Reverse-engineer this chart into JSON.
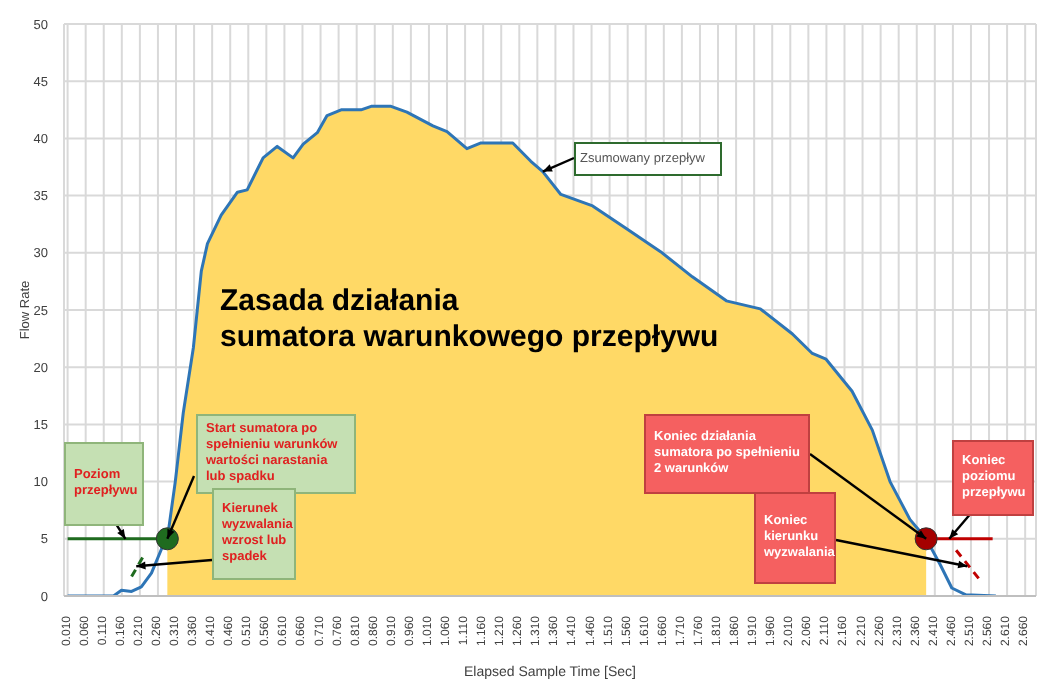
{
  "chart_data": {
    "type": "line",
    "title": "Zasada działania\nsumatora warunkowego przepływu",
    "xlabel": "Elapsed Sample Time [Sec]",
    "ylabel": "Flow Rate",
    "xlim": [
      0,
      2.69
    ],
    "ylim": [
      0,
      50
    ],
    "yticks": [
      0,
      5,
      10,
      15,
      20,
      25,
      30,
      35,
      40,
      45,
      50
    ],
    "xticks": [
      {
        "value": 0.01,
        "label": "0.010"
      },
      {
        "value": 0.06,
        "label": "0.060"
      },
      {
        "value": 0.11,
        "label": "0.110"
      },
      {
        "value": 0.16,
        "label": "0.160"
      },
      {
        "value": 0.21,
        "label": "0.210"
      },
      {
        "value": 0.26,
        "label": "0.260"
      },
      {
        "value": 0.31,
        "label": "0.310"
      },
      {
        "value": 0.36,
        "label": "0.360"
      },
      {
        "value": 0.41,
        "label": "0.410"
      },
      {
        "value": 0.46,
        "label": "0.460"
      },
      {
        "value": 0.51,
        "label": "0.510"
      },
      {
        "value": 0.56,
        "label": "0.560"
      },
      {
        "value": 0.61,
        "label": "0.610"
      },
      {
        "value": 0.66,
        "label": "0.660"
      },
      {
        "value": 0.71,
        "label": "0.710"
      },
      {
        "value": 0.76,
        "label": "0.760"
      },
      {
        "value": 0.81,
        "label": "0.810"
      },
      {
        "value": 0.86,
        "label": "0.860"
      },
      {
        "value": 0.91,
        "label": "0.910"
      },
      {
        "value": 0.96,
        "label": "0.960"
      },
      {
        "value": 1.01,
        "label": "1.010"
      },
      {
        "value": 1.06,
        "label": "1.060"
      },
      {
        "value": 1.11,
        "label": "1.110"
      },
      {
        "value": 1.16,
        "label": "1.160"
      },
      {
        "value": 1.21,
        "label": "1.210"
      },
      {
        "value": 1.26,
        "label": "1.260"
      },
      {
        "value": 1.31,
        "label": "1.310"
      },
      {
        "value": 1.36,
        "label": "1.360"
      },
      {
        "value": 1.41,
        "label": "1.410"
      },
      {
        "value": 1.46,
        "label": "1.460"
      },
      {
        "value": 1.51,
        "label": "1.510"
      },
      {
        "value": 1.56,
        "label": "1.560"
      },
      {
        "value": 1.61,
        "label": "1.610"
      },
      {
        "value": 1.66,
        "label": "1.660"
      },
      {
        "value": 1.71,
        "label": "1.710"
      },
      {
        "value": 1.76,
        "label": "1.760"
      },
      {
        "value": 1.81,
        "label": "1.810"
      },
      {
        "value": 1.86,
        "label": "1.860"
      },
      {
        "value": 1.91,
        "label": "1.910"
      },
      {
        "value": 1.96,
        "label": "1.960"
      },
      {
        "value": 2.01,
        "label": "2.010"
      },
      {
        "value": 2.06,
        "label": "2.060"
      },
      {
        "value": 2.11,
        "label": "2.110"
      },
      {
        "value": 2.16,
        "label": "2.160"
      },
      {
        "value": 2.21,
        "label": "2.210"
      },
      {
        "value": 2.26,
        "label": "2.260"
      },
      {
        "value": 2.31,
        "label": "2.310"
      },
      {
        "value": 2.36,
        "label": "2.360"
      },
      {
        "value": 2.41,
        "label": "2.410"
      },
      {
        "value": 2.46,
        "label": "2.460"
      },
      {
        "value": 2.51,
        "label": "2.510"
      },
      {
        "value": 2.56,
        "label": "2.560"
      },
      {
        "value": 2.61,
        "label": "2.610"
      },
      {
        "value": 2.66,
        "label": "2.660"
      }
    ],
    "grid": true,
    "marker": "none",
    "series": [
      {
        "type": "area",
        "color": "#ffd966",
        "x": [
          0.286,
          0.308,
          0.33,
          0.358,
          0.38,
          0.397,
          0.435,
          0.48,
          0.507,
          0.551,
          0.59,
          0.634,
          0.662,
          0.701,
          0.728,
          0.767,
          0.822,
          0.85,
          0.905,
          0.949,
          1.021,
          1.06,
          1.115,
          1.154,
          1.242,
          1.292,
          1.325,
          1.375,
          1.463,
          1.557,
          1.651,
          1.739,
          1.833,
          1.927,
          2.016,
          2.071,
          2.109,
          2.181,
          2.237,
          2.286,
          2.341,
          2.386
        ],
        "values": [
          5,
          10,
          16,
          21.7,
          28.4,
          30.8,
          33.3,
          35.3,
          35.5,
          38.3,
          39.3,
          38.3,
          39.5,
          40.5,
          42,
          42.5,
          42.5,
          42.8,
          42.8,
          42.3,
          41.1,
          40.6,
          39.1,
          39.6,
          39.6,
          38,
          37.1,
          35.1,
          34.1,
          32.1,
          30.1,
          27.9,
          25.8,
          25.1,
          22.9,
          21.2,
          20.7,
          17.9,
          14.5,
          10,
          6.7,
          5
        ]
      },
      {
        "color": "#2e75b6",
        "x": [
          0.01,
          0.137,
          0.159,
          0.187,
          0.214,
          0.242,
          0.275,
          0.286,
          0.308,
          0.33,
          0.358,
          0.38,
          0.397,
          0.435,
          0.48,
          0.507,
          0.551,
          0.59,
          0.634,
          0.662,
          0.701,
          0.728,
          0.767,
          0.822,
          0.85,
          0.905,
          0.949,
          1.021,
          1.06,
          1.115,
          1.154,
          1.242,
          1.292,
          1.325,
          1.375,
          1.463,
          1.557,
          1.651,
          1.739,
          1.833,
          1.927,
          2.016,
          2.071,
          2.109,
          2.181,
          2.237,
          2.286,
          2.341,
          2.386,
          2.424,
          2.457,
          2.496,
          2.579
        ],
        "values": [
          0,
          0,
          0.5,
          0.4,
          0.8,
          2,
          4.5,
          5,
          10,
          16,
          21.7,
          28.4,
          30.8,
          33.3,
          35.3,
          35.5,
          38.3,
          39.3,
          38.3,
          39.5,
          40.5,
          42,
          42.5,
          42.5,
          42.8,
          42.8,
          42.3,
          41.1,
          40.6,
          39.1,
          39.6,
          39.6,
          38,
          37.1,
          35.1,
          34.1,
          32.1,
          30.1,
          27.9,
          25.8,
          25.1,
          22.9,
          21.2,
          20.7,
          17.9,
          14.5,
          10,
          6.7,
          5,
          2.8,
          0.7,
          0.1,
          0
        ]
      },
      {
        "type": "line",
        "color": "#1f6b1f",
        "x": [
          0.01,
          0.286
        ],
        "values": [
          5,
          5
        ]
      },
      {
        "type": "line",
        "color": "#1f6b1f",
        "line_style": "dashed",
        "x": [
          0.187,
          0.22
        ],
        "values": [
          1.7,
          3.5
        ]
      },
      {
        "type": "scatter",
        "color": "#1f6b1f",
        "marker": "circle",
        "x": [
          0.286
        ],
        "values": [
          5
        ]
      },
      {
        "type": "line",
        "color": "#c00000",
        "x": [
          2.386,
          2.57
        ],
        "values": [
          5,
          5
        ]
      },
      {
        "type": "line",
        "color": "#c00000",
        "line_style": "dashed",
        "x": [
          2.469,
          2.54
        ],
        "values": [
          4,
          1.2
        ]
      },
      {
        "type": "scatter",
        "color": "#a50000",
        "marker": "circle",
        "x": [
          2.386
        ],
        "values": [
          5
        ]
      }
    ],
    "annotations": [
      {
        "text": "Zsumowany przepływ",
        "x": 1.325,
        "y": 37.1
      },
      {
        "text": "Start sumatora po spełnieniu warunków wartości narastania lub spadku",
        "x": 0.286,
        "y": 5
      },
      {
        "text": "Poziom przepływu",
        "x": 0.17,
        "y": 5
      },
      {
        "text": "Kierunek wyzwalania wzrost lub spadek",
        "x": 0.2,
        "y": 2.6
      },
      {
        "text": "Koniec działania sumatora po spełnieniu 2 warunków",
        "x": 2.386,
        "y": 5
      },
      {
        "text": "Koniec kierunku wyzwalania",
        "x": 2.5,
        "y": 2.6
      },
      {
        "text": "Koniec poziomu przepływu",
        "x": 2.45,
        "y": 5
      }
    ]
  }
}
